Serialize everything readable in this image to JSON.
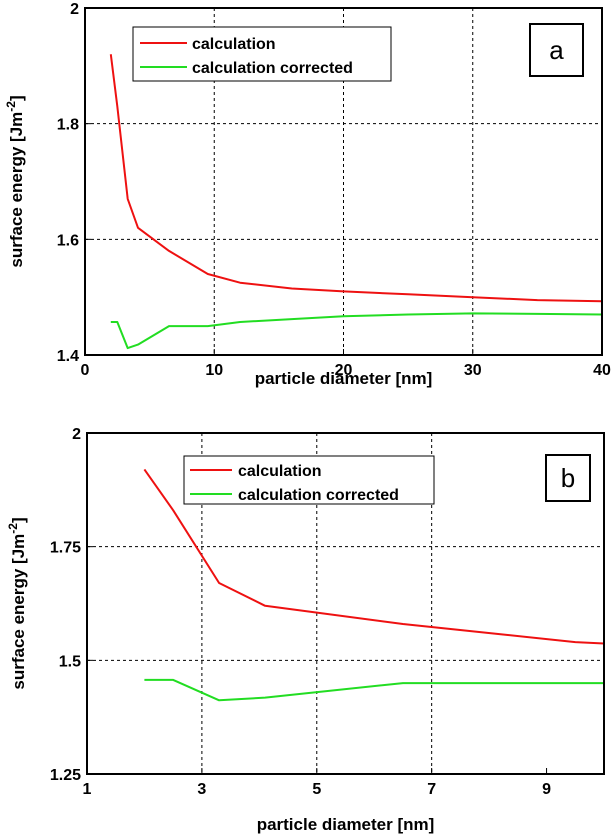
{
  "chart_data": [
    {
      "type": "line",
      "panel_label": "a",
      "xlabel": "particle diameter [nm]",
      "ylabel": "surface energy [Jm",
      "ylabel_sup": "-2",
      "ylabel_close": "]",
      "xlim": [
        0,
        40
      ],
      "ylim": [
        1.4,
        2.0
      ],
      "xticks": [
        0,
        10,
        20,
        30,
        40
      ],
      "xtick_labels": [
        "0",
        "10",
        "20",
        "30",
        "40"
      ],
      "yticks": [
        1.4,
        1.6,
        1.8,
        2.0
      ],
      "ytick_labels": [
        "1.4",
        "1.6",
        "1.8",
        "2"
      ],
      "grid": true,
      "legend_position": "top-center",
      "series": [
        {
          "name": "calculation",
          "color": "#ee1111",
          "x": [
            2.0,
            2.5,
            3.3,
            4.1,
            6.5,
            9.5,
            12,
            16,
            20,
            25,
            30,
            35,
            40
          ],
          "y": [
            1.92,
            1.83,
            1.67,
            1.62,
            1.58,
            1.54,
            1.525,
            1.515,
            1.51,
            1.505,
            1.5,
            1.495,
            1.493
          ]
        },
        {
          "name": "calculation corrected",
          "color": "#22dd22",
          "x": [
            2.0,
            2.5,
            3.3,
            4.1,
            6.5,
            9.5,
            12,
            16,
            20,
            25,
            30,
            35,
            40
          ],
          "y": [
            1.457,
            1.457,
            1.412,
            1.418,
            1.45,
            1.45,
            1.457,
            1.462,
            1.467,
            1.47,
            1.472,
            1.471,
            1.47
          ]
        }
      ]
    },
    {
      "type": "line",
      "panel_label": "b",
      "xlabel": "particle diameter [nm]",
      "ylabel": "surface energy [Jm",
      "ylabel_sup": "-2",
      "ylabel_close": "]",
      "xlim": [
        1,
        10
      ],
      "ylim": [
        1.25,
        2.0
      ],
      "xticks": [
        1,
        3,
        5,
        7,
        9
      ],
      "xtick_labels": [
        "1",
        "3",
        "5",
        "7",
        "9"
      ],
      "yticks": [
        1.25,
        1.5,
        1.75,
        2.0
      ],
      "ytick_labels": [
        "1.25",
        "1.5",
        "1.75",
        "2"
      ],
      "grid": true,
      "legend_position": "top-center",
      "series": [
        {
          "name": "calculation",
          "color": "#ee1111",
          "x": [
            2.0,
            2.5,
            3.3,
            4.1,
            6.5,
            9.5,
            10
          ],
          "y": [
            1.92,
            1.83,
            1.67,
            1.62,
            1.58,
            1.54,
            1.537
          ]
        },
        {
          "name": "calculation corrected",
          "color": "#22dd22",
          "x": [
            2.0,
            2.5,
            3.3,
            4.1,
            6.5,
            9.5,
            10
          ],
          "y": [
            1.457,
            1.457,
            1.412,
            1.418,
            1.45,
            1.45,
            1.45
          ]
        }
      ]
    }
  ]
}
